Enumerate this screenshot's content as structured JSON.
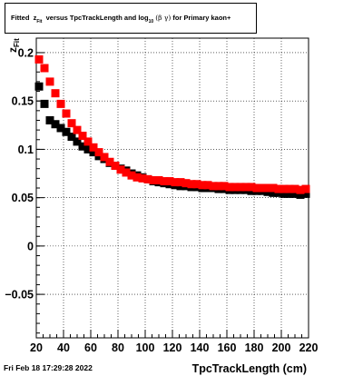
{
  "title": {
    "prefix": "Fitted",
    "z": "z",
    "z_sub": "Fit",
    "middle": "versus TpcTrackLength and log",
    "log_sub": "10",
    "paren": "(β γ)",
    "suffix": "for Primary kaon+"
  },
  "footer_date": "Fri Feb 18 17:29:28 2022",
  "chart_data": {
    "type": "scatter",
    "xlabel": "TpcTrackLength (cm)",
    "ylabel": "z",
    "ylabel_sub": "Fit",
    "xlim": [
      20,
      220
    ],
    "ylim": [
      -0.095,
      0.215
    ],
    "xticks": [
      20,
      40,
      60,
      80,
      100,
      120,
      140,
      160,
      180,
      200,
      220
    ],
    "yticks": [
      -0.05,
      0,
      0.05,
      0.1,
      0.15,
      0.2
    ],
    "ytick_labels": [
      "−0.05",
      "0",
      "0.05",
      "0.1",
      "0.15",
      "0.2"
    ],
    "grid": true,
    "series": [
      {
        "color": "#000000",
        "x": [
          22,
          26,
          30,
          34,
          38,
          42,
          46,
          50,
          54,
          58,
          62,
          66,
          70,
          74,
          78,
          82,
          86,
          90,
          94,
          98,
          102,
          106,
          110,
          114,
          118,
          122,
          126,
          130,
          134,
          138,
          142,
          146,
          150,
          154,
          158,
          162,
          166,
          170,
          174,
          178,
          182,
          186,
          190,
          194,
          198,
          202,
          206,
          210,
          214,
          218
        ],
        "y": [
          0.165,
          0.147,
          0.13,
          0.126,
          0.122,
          0.118,
          0.113,
          0.108,
          0.103,
          0.1,
          0.097,
          0.093,
          0.09,
          0.086,
          0.083,
          0.08,
          0.078,
          0.075,
          0.073,
          0.071,
          0.069,
          0.067,
          0.066,
          0.065,
          0.064,
          0.063,
          0.062,
          0.062,
          0.061,
          0.061,
          0.06,
          0.06,
          0.06,
          0.059,
          0.059,
          0.058,
          0.058,
          0.058,
          0.058,
          0.057,
          0.057,
          0.057,
          0.056,
          0.055,
          0.055,
          0.054,
          0.054,
          0.054,
          0.053,
          0.054
        ]
      },
      {
        "color": "#ff0000",
        "x": [
          22,
          26,
          30,
          34,
          38,
          42,
          46,
          50,
          54,
          58,
          62,
          66,
          70,
          74,
          78,
          82,
          86,
          90,
          94,
          98,
          102,
          106,
          110,
          114,
          118,
          122,
          126,
          130,
          134,
          138,
          142,
          146,
          150,
          154,
          158,
          162,
          166,
          170,
          174,
          178,
          182,
          186,
          190,
          194,
          198,
          202,
          206,
          210,
          214,
          218
        ],
        "y": [
          0.193,
          0.184,
          0.17,
          0.158,
          0.147,
          0.137,
          0.127,
          0.12,
          0.114,
          0.108,
          0.102,
          0.097,
          0.092,
          0.087,
          0.083,
          0.079,
          0.076,
          0.073,
          0.071,
          0.07,
          0.069,
          0.068,
          0.068,
          0.067,
          0.067,
          0.066,
          0.066,
          0.065,
          0.064,
          0.064,
          0.063,
          0.063,
          0.062,
          0.062,
          0.062,
          0.061,
          0.061,
          0.061,
          0.061,
          0.061,
          0.06,
          0.06,
          0.06,
          0.06,
          0.059,
          0.059,
          0.059,
          0.059,
          0.058,
          0.059
        ]
      }
    ]
  }
}
